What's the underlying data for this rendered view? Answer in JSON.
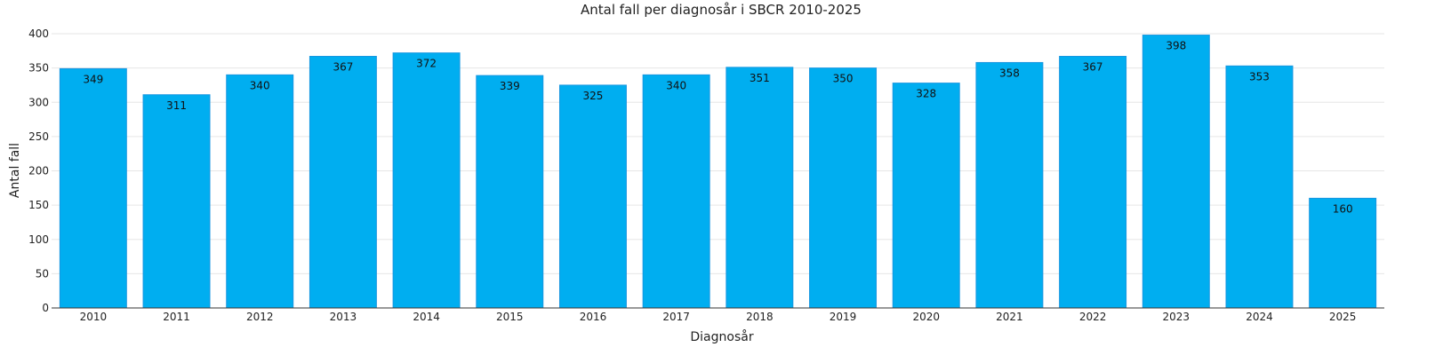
{
  "chart_data": {
    "type": "bar",
    "title": "Antal fall per diagnosår i SBCR 2010-2025",
    "xlabel": "Diagnosår",
    "ylabel": "Antal fall",
    "categories": [
      "2010",
      "2011",
      "2012",
      "2013",
      "2014",
      "2015",
      "2016",
      "2017",
      "2018",
      "2019",
      "2020",
      "2021",
      "2022",
      "2023",
      "2024",
      "2025"
    ],
    "values": [
      349,
      311,
      340,
      367,
      372,
      339,
      325,
      340,
      351,
      350,
      328,
      358,
      367,
      398,
      353,
      160
    ],
    "ylim": [
      0,
      400
    ],
    "yticks": [
      0,
      50,
      100,
      150,
      200,
      250,
      300,
      350,
      400
    ],
    "grid": true,
    "legend": "none",
    "colors": {
      "bar": "#00aef0",
      "bar_edge": "#1796e0"
    }
  }
}
